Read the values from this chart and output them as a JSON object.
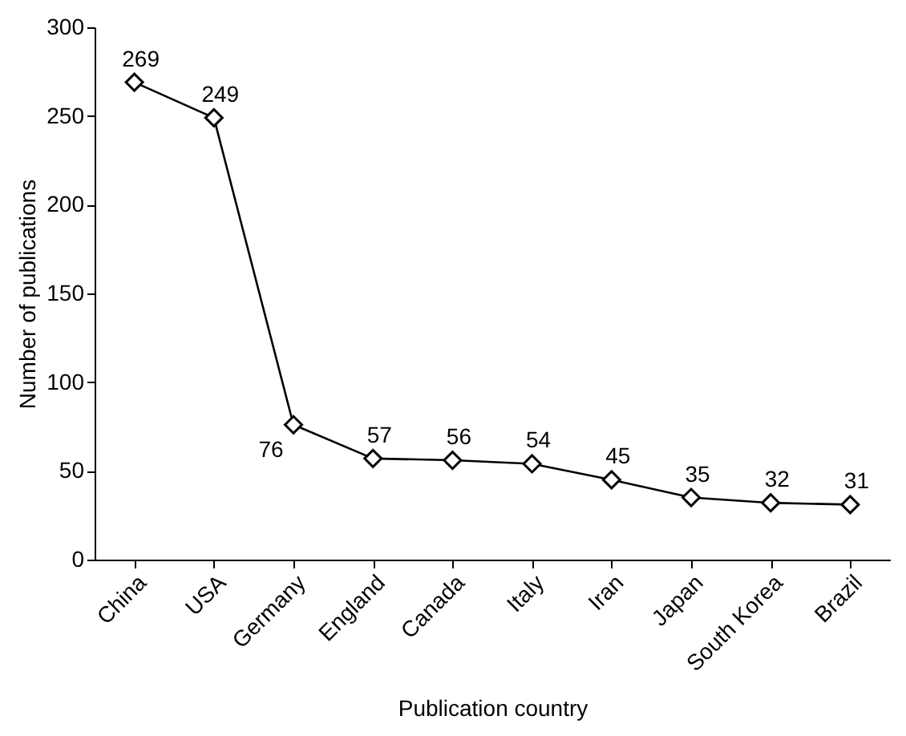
{
  "chart_data": {
    "type": "line",
    "xlabel": "Publication country",
    "ylabel": "Number of publications",
    "categories": [
      "China",
      "USA",
      "Germany",
      "England",
      "Canada",
      "Italy",
      "Iran",
      "Japan",
      "South Korea",
      "Brazil"
    ],
    "values": [
      269,
      249,
      76,
      57,
      56,
      54,
      45,
      35,
      32,
      31
    ],
    "color": "#000000",
    "marker": "diamond",
    "line_style": "solid",
    "ylim": [
      0,
      300
    ],
    "yticks": [
      0,
      50,
      100,
      150,
      200,
      250,
      300
    ],
    "grid": false,
    "data_labels": true
  }
}
